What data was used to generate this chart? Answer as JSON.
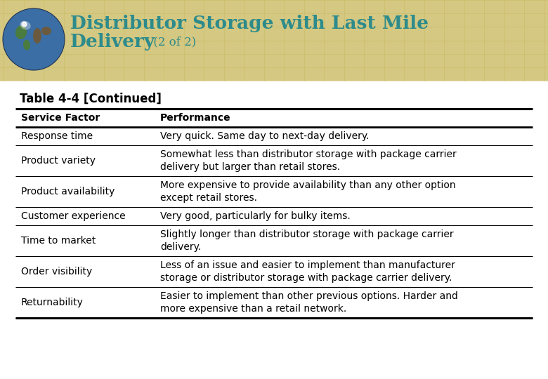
{
  "title_line1": "Distributor Storage with Last Mile",
  "title_line2": "Delivery",
  "title_suffix": " (2 of 2)",
  "title_color": "#2E8B8B",
  "header_bg_color": "#D4C882",
  "header_grid_color": "#C8B85A",
  "table_title": "Table 4-4 [Continued]",
  "col1_header": "Service Factor",
  "col2_header": "Performance",
  "rows": [
    {
      "factor": "Response time",
      "performance": "Very quick. Same day to next-day delivery.",
      "multiline": false
    },
    {
      "factor": "Product variety",
      "performance": "Somewhat less than distributor storage with package carrier\ndelivery but larger than retail stores.",
      "multiline": true
    },
    {
      "factor": "Product availability",
      "performance": "More expensive to provide availability than any other option\nexcept retail stores.",
      "multiline": true
    },
    {
      "factor": "Customer experience",
      "performance": "Very good, particularly for bulky items.",
      "multiline": false
    },
    {
      "factor": "Time to market",
      "performance": "Slightly longer than distributor storage with package carrier\ndelivery.",
      "multiline": true
    },
    {
      "factor": "Order visibility",
      "performance": "Less of an issue and easier to implement than manufacturer\nstorage or distributor storage with package carrier delivery.",
      "multiline": true
    },
    {
      "factor": "Returnability",
      "performance": "Easier to implement than other previous options. Harder and\nmore expensive than a retail network.",
      "multiline": true
    }
  ],
  "bg_color": "#FFFFFF",
  "globe_ocean": "#3a6ea5",
  "globe_land1": "#4a7c3f",
  "globe_land2": "#6b5a3e",
  "globe_shine": "#c8d8f0"
}
